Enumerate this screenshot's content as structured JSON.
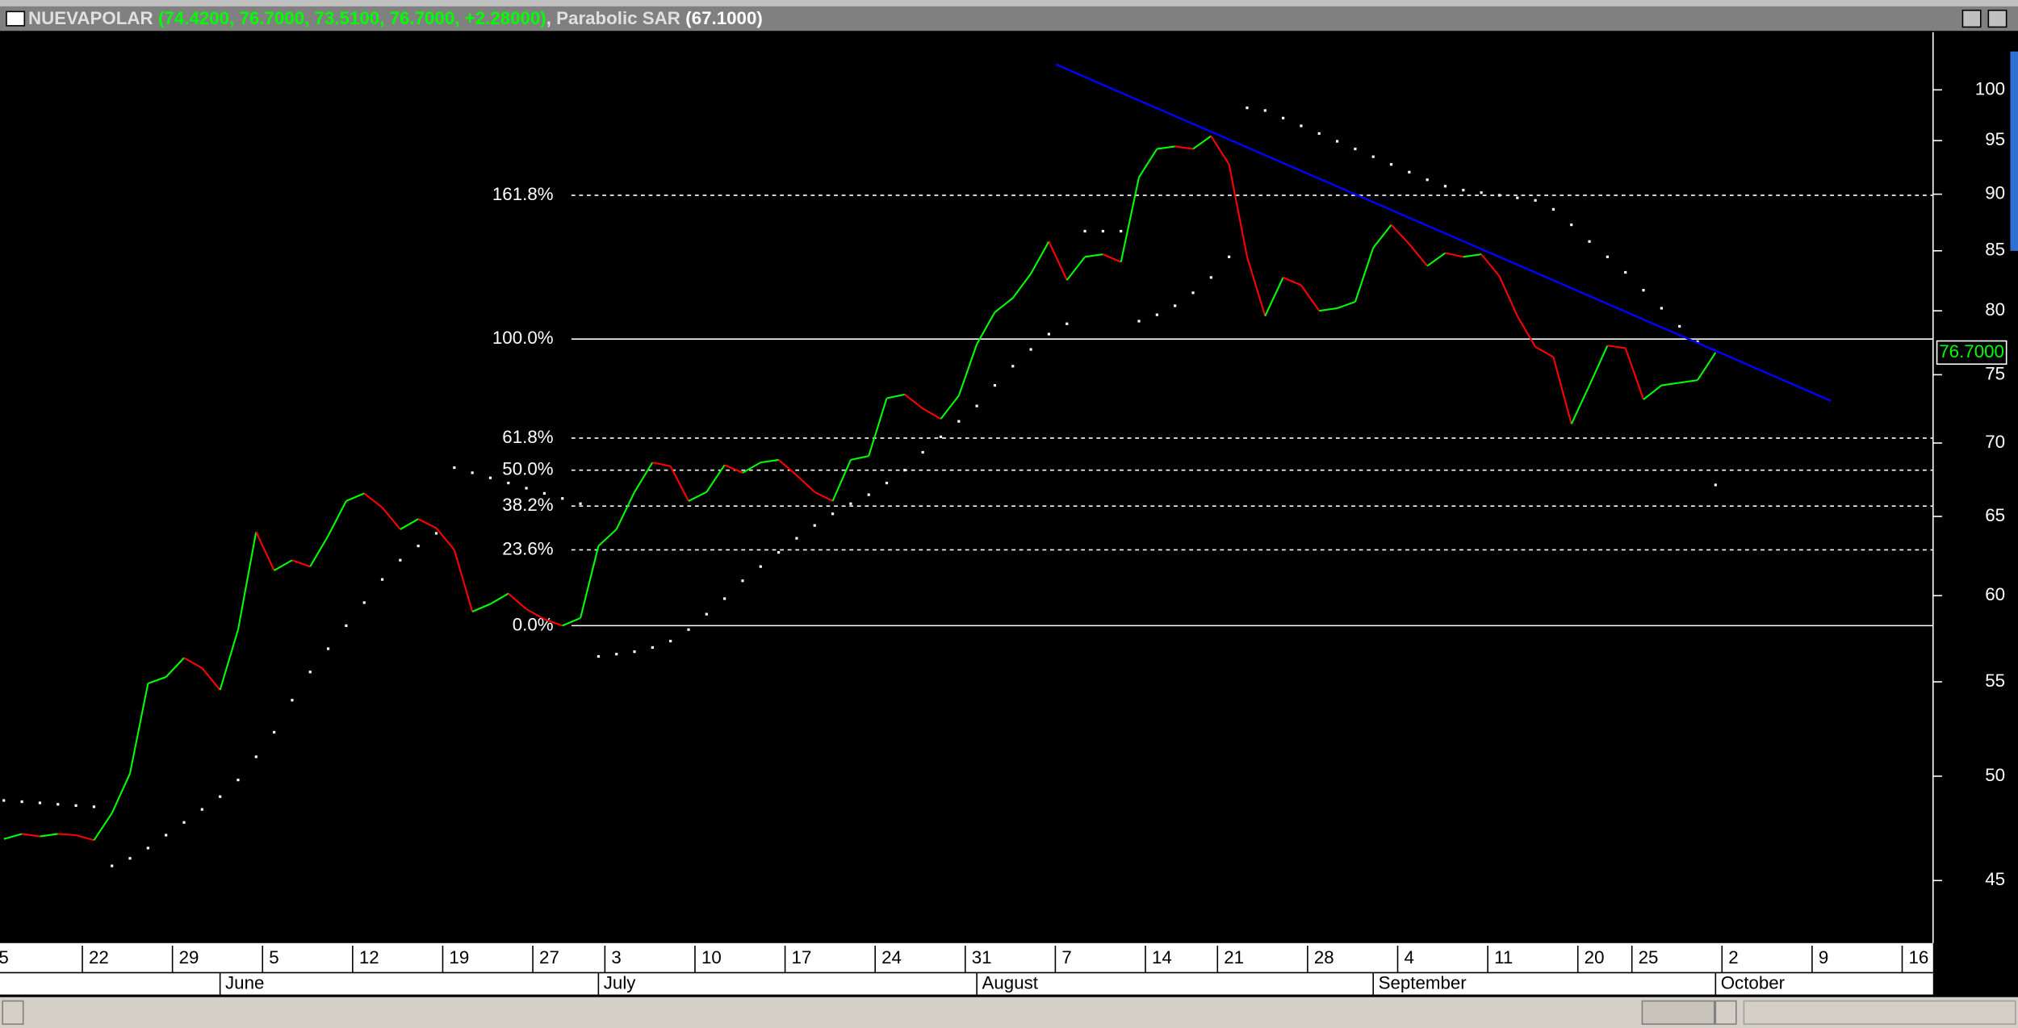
{
  "chart_data": {
    "type": "line",
    "log_scale": true,
    "grid": false,
    "up_color": "#00ff00",
    "down_color": "#ff0000",
    "ohlc_label": "(74.4200, 76.7000, 73.5100, 76.7000, +2.28000)",
    "indicator_label": "(67.1000)",
    "last_value_label": "76.7000",
    "categories": [
      "5",
      null,
      null,
      null,
      null,
      "22",
      null,
      null,
      null,
      null,
      "29",
      null,
      null,
      null,
      null,
      "5",
      null,
      null,
      null,
      null,
      "12",
      null,
      null,
      null,
      null,
      "19",
      null,
      null,
      null,
      null,
      "27",
      null,
      null,
      null,
      "3",
      null,
      null,
      null,
      null,
      "10",
      null,
      null,
      null,
      null,
      "17",
      null,
      null,
      null,
      null,
      "24",
      null,
      null,
      null,
      null,
      "31",
      null,
      null,
      null,
      null,
      "7",
      null,
      null,
      null,
      null,
      "14",
      null,
      null,
      null,
      "21",
      null,
      null,
      null,
      null,
      "28",
      null,
      null,
      null,
      null,
      "4",
      null,
      null,
      null,
      null,
      "11",
      null,
      null,
      null,
      null,
      "20",
      null,
      null,
      "25",
      null,
      null,
      null,
      null,
      "2",
      null,
      null,
      null,
      null,
      "9",
      null,
      null,
      null,
      null,
      "16"
    ],
    "month_categories": [
      null,
      null,
      null,
      null,
      null,
      null,
      null,
      null,
      null,
      null,
      null,
      null,
      "June",
      null,
      null,
      null,
      null,
      null,
      null,
      null,
      null,
      null,
      null,
      null,
      null,
      null,
      null,
      null,
      null,
      null,
      null,
      null,
      null,
      "July",
      null,
      null,
      null,
      null,
      null,
      null,
      null,
      null,
      null,
      null,
      null,
      null,
      null,
      null,
      null,
      null,
      null,
      null,
      null,
      null,
      "August",
      null,
      null,
      null,
      null,
      null,
      null,
      null,
      null,
      null,
      null,
      null,
      null,
      null,
      null,
      null,
      null,
      null,
      null,
      null,
      null,
      null,
      "September",
      null,
      null,
      null,
      null,
      null,
      null,
      null,
      null,
      null,
      null,
      null,
      null,
      null,
      null,
      null,
      null,
      null,
      null,
      "October",
      null,
      null,
      null,
      null,
      null,
      null,
      null,
      null,
      null,
      null,
      null
    ],
    "series": [
      {
        "name": "NUEVAPOLAR",
        "style": "line",
        "values": [
          46.93,
          47.17,
          47.05,
          47.17,
          47.11,
          46.87,
          48.17,
          50.14,
          54.91,
          55.27,
          56.35,
          55.77,
          54.55,
          57.98,
          63.99,
          61.55,
          62.19,
          61.79,
          63.74,
          66.02,
          66.53,
          65.59,
          64.16,
          64.83,
          64.24,
          62.84,
          59.04,
          59.5,
          60.13,
          59.19,
          58.59,
          58.21,
          58.66,
          63.09,
          64.16,
          66.62,
          68.64,
          68.38,
          66.02,
          66.62,
          68.46,
          67.93,
          68.64,
          68.82,
          67.76,
          66.62,
          66.02,
          68.82,
          69.09,
          73.24,
          73.52,
          72.48,
          71.73,
          73.43,
          77.35,
          79.89,
          81.04,
          83.06,
          85.8,
          82.52,
          84.48,
          84.7,
          84.04,
          91.56,
          94.21,
          94.45,
          94.21,
          95.44,
          92.75,
          84.48,
          79.58,
          82.74,
          82.1,
          80.0,
          80.21,
          80.73,
          85.25,
          87.26,
          85.58,
          83.71,
          84.81,
          84.48,
          84.7,
          82.85,
          79.58,
          77.14,
          76.35,
          71.36,
          74.2,
          77.24,
          77.04,
          73.15,
          74.2,
          74.39,
          74.59,
          76.7,
          null,
          null,
          null,
          null,
          null,
          null,
          null,
          null,
          null,
          null,
          null
        ]
      },
      {
        "name": "Parabolic SAR",
        "style": "dots",
        "color": "#ffffff",
        "values": [
          48.79,
          48.73,
          48.67,
          48.6,
          48.54,
          48.48,
          45.67,
          46.02,
          46.5,
          47.11,
          47.72,
          48.35,
          48.98,
          49.81,
          50.99,
          52.27,
          53.99,
          55.55,
          56.87,
          58.21,
          59.58,
          60.99,
          62.19,
          63.09,
          63.9,
          68.28,
          67.93,
          67.58,
          67.23,
          66.88,
          66.53,
          66.19,
          65.84,
          56.43,
          56.56,
          56.7,
          56.94,
          57.31,
          57.98,
          58.89,
          59.82,
          60.91,
          61.79,
          62.68,
          63.58,
          64.41,
          65.17,
          65.84,
          66.44,
          67.23,
          68.11,
          69.35,
          70.44,
          71.55,
          72.67,
          74.2,
          75.65,
          76.94,
          78.14,
          78.96,
          86.7,
          86.7,
          86.7,
          79.17,
          79.68,
          80.41,
          81.47,
          82.74,
          84.48,
          98.2,
          97.94,
          97.19,
          96.43,
          95.69,
          94.94,
          94.21,
          93.47,
          92.75,
          92.03,
          91.32,
          90.73,
          90.37,
          90.14,
          89.9,
          89.67,
          89.44,
          88.63,
          87.26,
          85.8,
          84.48,
          83.17,
          81.68,
          80.21,
          78.76,
          77.55,
          67.1,
          null,
          null,
          null,
          null,
          null,
          null,
          null,
          null,
          null,
          null,
          null
        ]
      }
    ],
    "fib_levels": [
      {
        "label": "161.8%",
        "value": 89.9,
        "style": "dashed"
      },
      {
        "label": "100.0%",
        "value": 77.75,
        "style": "solid"
      },
      {
        "label": "61.8%",
        "value": 70.35,
        "style": "dashed"
      },
      {
        "label": "50.0%",
        "value": 68.11,
        "style": "dashed"
      },
      {
        "label": "38.2%",
        "value": 65.68,
        "style": "dashed"
      },
      {
        "label": "23.6%",
        "value": 62.84,
        "style": "dashed"
      },
      {
        "label": "0.0%",
        "value": 58.21,
        "style": "solid"
      }
    ],
    "trendline": {
      "color": "#0000ff",
      "start": [
        58.4,
        102.6
      ],
      "end": [
        101.4,
        73.05
      ]
    },
    "ylim": [
      42.3,
      106
    ],
    "yticks": [
      45,
      50,
      55,
      60,
      65,
      70,
      75,
      80,
      85,
      90,
      95,
      100
    ]
  }
}
